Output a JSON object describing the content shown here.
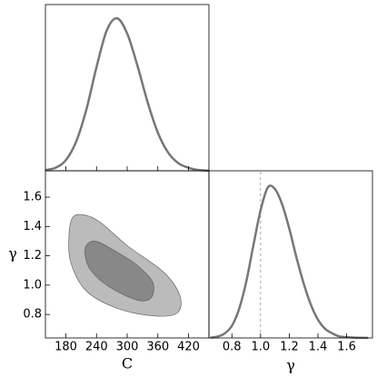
{
  "chart_data": [
    {
      "type": "line",
      "color": "#777777",
      "x": [
        140,
        160,
        180,
        200,
        220,
        240,
        260,
        280,
        300,
        320,
        340,
        360,
        380,
        400,
        420,
        440,
        460
      ],
      "values": [
        0.005,
        0.02,
        0.07,
        0.19,
        0.4,
        0.68,
        0.92,
        1.0,
        0.9,
        0.69,
        0.45,
        0.25,
        0.12,
        0.05,
        0.02,
        0.005,
        0.001
      ],
      "xlim": [
        140,
        460
      ],
      "ylim": [
        0,
        1.09
      ],
      "xticks": [
        180,
        240,
        300,
        360,
        420
      ]
    },
    {
      "type": "contour",
      "x_label": "C",
      "y_label": "γ",
      "contours": [
        {
          "color": "#bbbbbb",
          "x": [
            193,
            215,
            247,
            300,
            371,
            403,
            398,
            353,
            282,
            220,
            190,
            186
          ],
          "y": [
            1.46,
            1.48,
            1.43,
            1.27,
            1.09,
            0.93,
            0.81,
            0.79,
            0.84,
            0.96,
            1.15,
            1.33
          ]
        },
        {
          "color": "#888888",
          "x": [
            220,
            238,
            273,
            318,
            350,
            346,
            318,
            264,
            229,
            218
          ],
          "y": [
            1.27,
            1.3,
            1.24,
            1.14,
            1.02,
            0.91,
            0.9,
            0.99,
            1.1,
            1.2
          ]
        }
      ],
      "xlim": [
        140,
        460
      ],
      "ylim": [
        0.64,
        1.78
      ],
      "xticks": [
        180,
        240,
        300,
        360,
        420
      ],
      "yticks": [
        0.8,
        {
          "value": 1,
          "label": "1.0"
        },
        1.2,
        1.4,
        1.6
      ]
    },
    {
      "type": "line",
      "x_label": "γ",
      "color": "#777777",
      "reference_line": 1,
      "reference_color": "#aaaaaa",
      "x": [
        0.65,
        0.7,
        0.75,
        0.8,
        0.85,
        0.9,
        0.95,
        1.0,
        1.05,
        1.1,
        1.15,
        1.2,
        1.25,
        1.3,
        1.35,
        1.4,
        1.45,
        1.5,
        1.55,
        1.6,
        1.65,
        1.7,
        1.75
      ],
      "values": [
        0.002,
        0.009,
        0.03,
        0.08,
        0.19,
        0.37,
        0.61,
        0.84,
        0.99,
        0.98,
        0.88,
        0.72,
        0.53,
        0.36,
        0.22,
        0.12,
        0.06,
        0.03,
        0.01,
        0.005,
        0.002,
        0.001,
        0
      ],
      "xlim": [
        0.64,
        1.78
      ],
      "ylim": [
        0,
        1.1
      ],
      "xticks": [
        0.8,
        {
          "value": 1,
          "label": "1.0"
        },
        1.2,
        1.4,
        1.6
      ]
    }
  ]
}
